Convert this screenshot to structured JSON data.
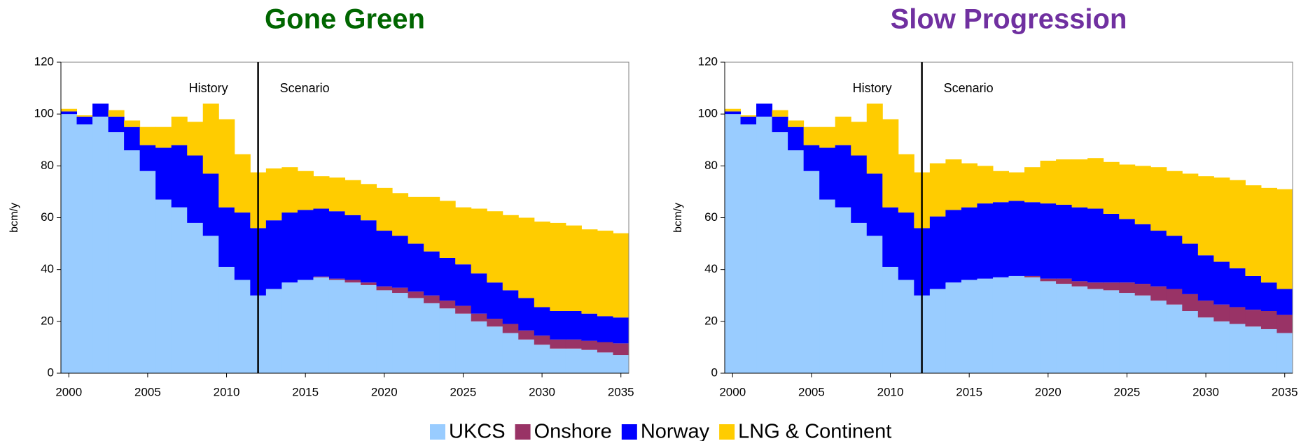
{
  "chart_data": [
    {
      "type": "bar",
      "stacked": true,
      "title": "Gone Green",
      "title_color": "#006600",
      "ylabel": "bcm/y",
      "annotations": [
        "History",
        "Scenario"
      ],
      "divider_x": 2012,
      "x": [
        2000,
        2001,
        2002,
        2003,
        2004,
        2005,
        2006,
        2007,
        2008,
        2009,
        2010,
        2011,
        2012,
        2013,
        2014,
        2015,
        2016,
        2017,
        2018,
        2019,
        2020,
        2021,
        2022,
        2023,
        2024,
        2025,
        2026,
        2027,
        2028,
        2029,
        2030,
        2031,
        2032,
        2033,
        2034,
        2035
      ],
      "xlim": [
        1999.5,
        2035.5
      ],
      "xticks": [
        2000,
        2005,
        2010,
        2015,
        2020,
        2025,
        2030,
        2035
      ],
      "ylim": [
        0,
        120
      ],
      "yticks": [
        0,
        20,
        40,
        60,
        80,
        100,
        120
      ],
      "series": [
        {
          "name": "UKCS",
          "color": "#99ccff",
          "values": [
            100,
            96,
            99,
            93,
            86,
            78,
            67,
            64,
            58,
            53,
            41,
            36,
            30,
            32.5,
            35,
            36,
            37,
            36,
            35,
            34,
            32,
            31,
            29,
            27,
            25,
            23,
            20,
            18,
            15.5,
            13,
            11,
            9.5,
            9.5,
            9,
            8,
            7
          ]
        },
        {
          "name": "Onshore",
          "color": "#993366",
          "values": [
            0,
            0,
            0,
            0,
            0,
            0,
            0,
            0,
            0,
            0,
            0,
            0,
            0,
            0,
            0,
            0,
            0.3,
            0.5,
            1,
            1,
            1.5,
            2,
            2.5,
            3,
            3,
            3,
            3,
            3,
            3.5,
            3.5,
            3.5,
            3.5,
            3.5,
            3.5,
            4,
            4.5
          ]
        },
        {
          "name": "Norway",
          "color": "#0000ff",
          "values": [
            1,
            3,
            5,
            6,
            9,
            10,
            20,
            24,
            26,
            24,
            23,
            26,
            26,
            26.5,
            27,
            27,
            26.2,
            26,
            25,
            24,
            21.5,
            20,
            18.5,
            17,
            16.5,
            16,
            15.5,
            14,
            13,
            12.5,
            11,
            11,
            11,
            10.5,
            10,
            10
          ]
        },
        {
          "name": "LNG & Continent",
          "color": "#ffcc00",
          "values": [
            1,
            0.5,
            0,
            2.5,
            2.5,
            7,
            8,
            11,
            13,
            27,
            34,
            22.5,
            21.5,
            20,
            17.5,
            15,
            12.5,
            13,
            13.5,
            14,
            16.5,
            16.5,
            18,
            21,
            22,
            22,
            25,
            27.5,
            29,
            31,
            33,
            34,
            33,
            32.5,
            33,
            32.5
          ]
        }
      ]
    },
    {
      "type": "bar",
      "stacked": true,
      "title": "Slow Progression",
      "title_color": "#7030a0",
      "ylabel": "bcm/y",
      "annotations": [
        "History",
        "Scenario"
      ],
      "divider_x": 2012,
      "x": [
        2000,
        2001,
        2002,
        2003,
        2004,
        2005,
        2006,
        2007,
        2008,
        2009,
        2010,
        2011,
        2012,
        2013,
        2014,
        2015,
        2016,
        2017,
        2018,
        2019,
        2020,
        2021,
        2022,
        2023,
        2024,
        2025,
        2026,
        2027,
        2028,
        2029,
        2030,
        2031,
        2032,
        2033,
        2034,
        2035
      ],
      "xlim": [
        1999.5,
        2035.5
      ],
      "xticks": [
        2000,
        2005,
        2010,
        2015,
        2020,
        2025,
        2030,
        2035
      ],
      "ylim": [
        0,
        120
      ],
      "yticks": [
        0,
        20,
        40,
        60,
        80,
        100,
        120
      ],
      "series": [
        {
          "color": "#99ccff",
          "values": [
            100,
            96,
            99,
            93,
            86,
            78,
            67,
            64,
            58,
            53,
            41,
            36,
            30,
            32.5,
            35,
            36,
            36.5,
            37,
            37.5,
            37,
            35.5,
            34.5,
            33.5,
            32.5,
            32,
            31,
            30,
            28,
            26.5,
            24,
            21.5,
            20,
            19,
            18,
            17,
            15.5
          ]
        },
        {
          "color": "#993366",
          "values": [
            0,
            0,
            0,
            0,
            0,
            0,
            0,
            0,
            0,
            0,
            0,
            0,
            0,
            0,
            0,
            0,
            0,
            0,
            0,
            0.5,
            1,
            2,
            2,
            2.5,
            3,
            4,
            4.5,
            5.5,
            6,
            6.5,
            6.5,
            6.5,
            6.5,
            6.5,
            7,
            7
          ]
        },
        {
          "color": "#0000ff",
          "values": [
            1,
            3,
            5,
            6,
            9,
            10,
            20,
            24,
            26,
            24,
            23,
            26,
            26,
            28,
            28,
            28,
            29,
            29,
            29,
            28.5,
            29,
            28.5,
            28.5,
            28.5,
            26.5,
            24.5,
            23,
            21.5,
            20.5,
            19.5,
            17.5,
            16.5,
            15,
            13,
            11,
            10
          ]
        },
        {
          "color": "#ffcc00",
          "values": [
            1,
            0.5,
            0,
            2.5,
            2.5,
            7,
            8,
            11,
            13,
            27,
            34,
            22.5,
            21.5,
            20.5,
            19.5,
            17,
            14.5,
            12,
            11,
            13.5,
            16.5,
            17.5,
            18.5,
            19.5,
            20,
            21,
            22.5,
            24.5,
            25,
            27,
            30.5,
            32.5,
            34,
            35,
            36.5,
            38.5
          ]
        }
      ]
    }
  ]
}
